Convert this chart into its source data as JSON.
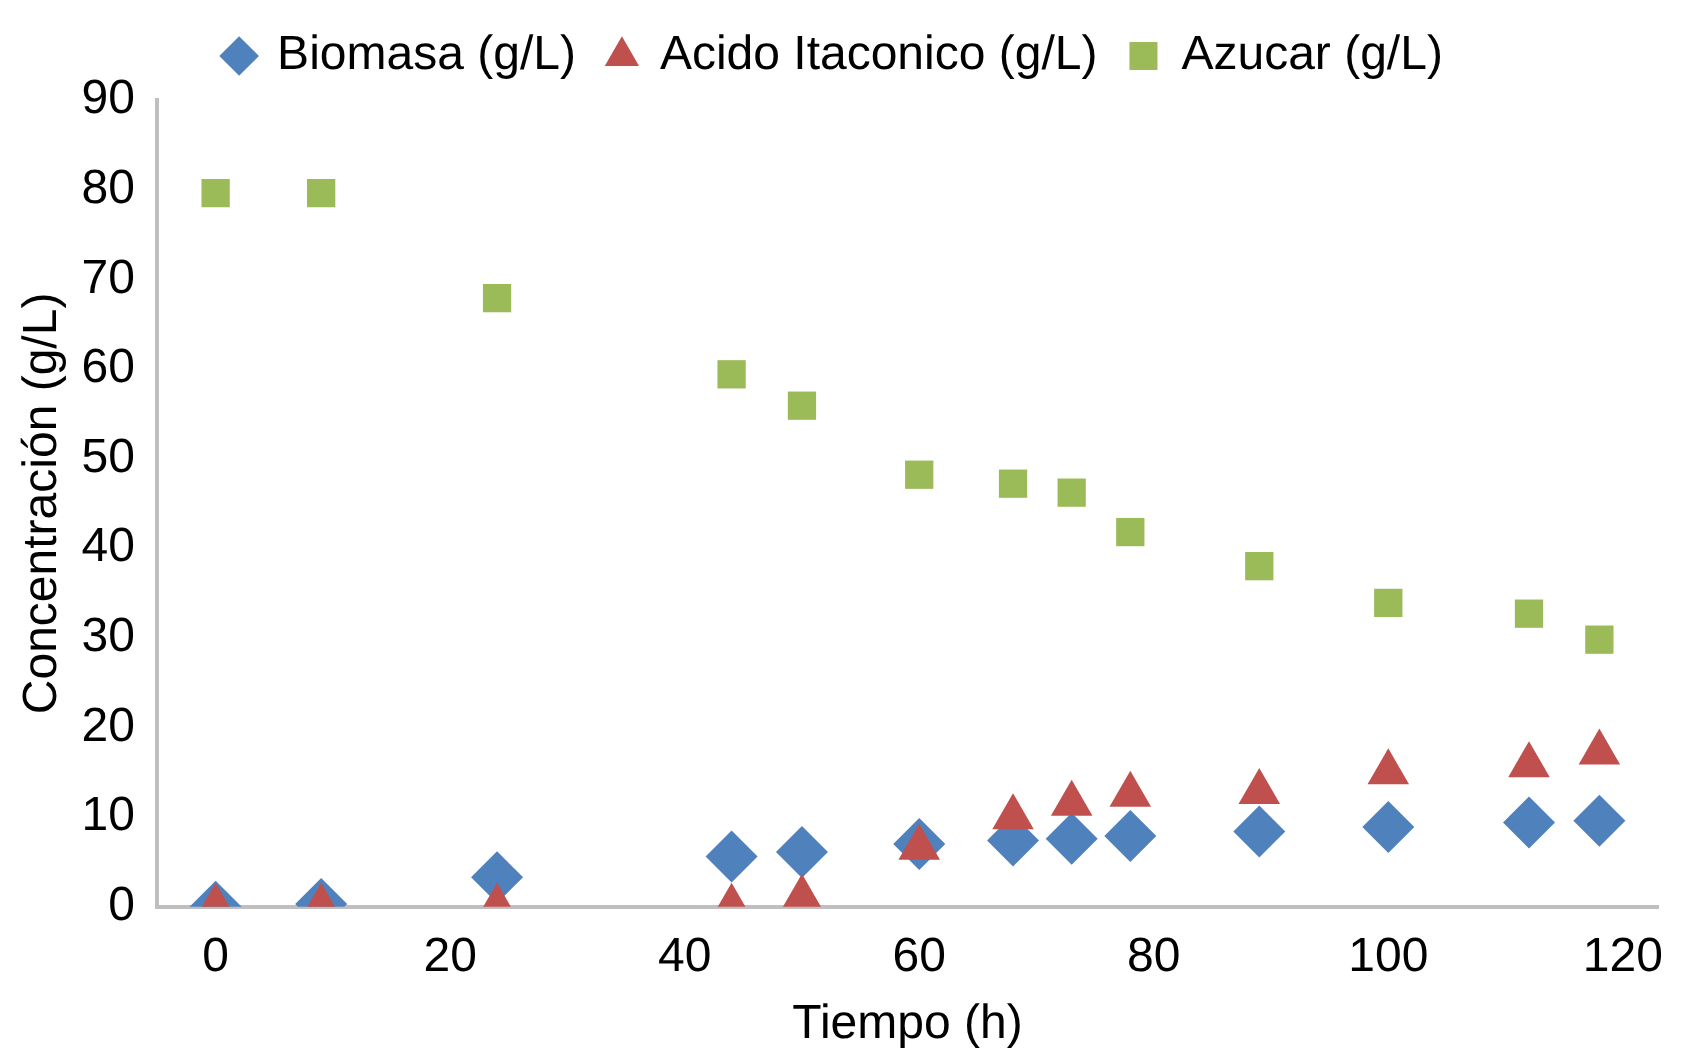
{
  "chart_data": {
    "type": "scatter",
    "xlabel": "Tiempo (h)",
    "ylabel": "Concentración (g/L)",
    "legend": "top",
    "grid": false,
    "xlim": [
      -5,
      123
    ],
    "xticks": [
      0,
      20,
      40,
      60,
      80,
      100,
      120
    ],
    "ylim": [
      0,
      90
    ],
    "yticks": [
      0,
      10,
      20,
      30,
      40,
      50,
      60,
      70,
      80,
      90
    ],
    "series": [
      {
        "name": "Biomasa (g/L)",
        "color": "#4f81bd",
        "marker": "diamond",
        "x": [
          0,
          9,
          24,
          44,
          50,
          60,
          68,
          73,
          78,
          89,
          100,
          112,
          118
        ],
        "values": [
          0,
          0.3,
          3.3,
          5.6,
          6.1,
          7,
          7.4,
          7.6,
          7.9,
          8.4,
          8.9,
          9.4,
          9.6
        ]
      },
      {
        "name": "Acido Itaconico (g/L)",
        "color": "#c0504d",
        "marker": "triangle",
        "x": [
          0,
          9,
          24,
          44,
          50,
          60,
          68,
          73,
          78,
          89,
          100,
          112,
          118
        ],
        "values": [
          0,
          0,
          0,
          0,
          1,
          6.6,
          10,
          11.5,
          12.5,
          12.8,
          15,
          15.8,
          17.2
        ]
      },
      {
        "name": "Azucar (g/L)",
        "color": "#9bbb59",
        "marker": "square",
        "x": [
          0,
          9,
          24,
          44,
          50,
          60,
          68,
          73,
          78,
          89,
          100,
          112,
          118
        ],
        "values": [
          79.6,
          79.6,
          67.9,
          59.4,
          55.9,
          48.2,
          47.2,
          46.2,
          41.8,
          38,
          33.9,
          32.7,
          29.8
        ]
      }
    ]
  }
}
